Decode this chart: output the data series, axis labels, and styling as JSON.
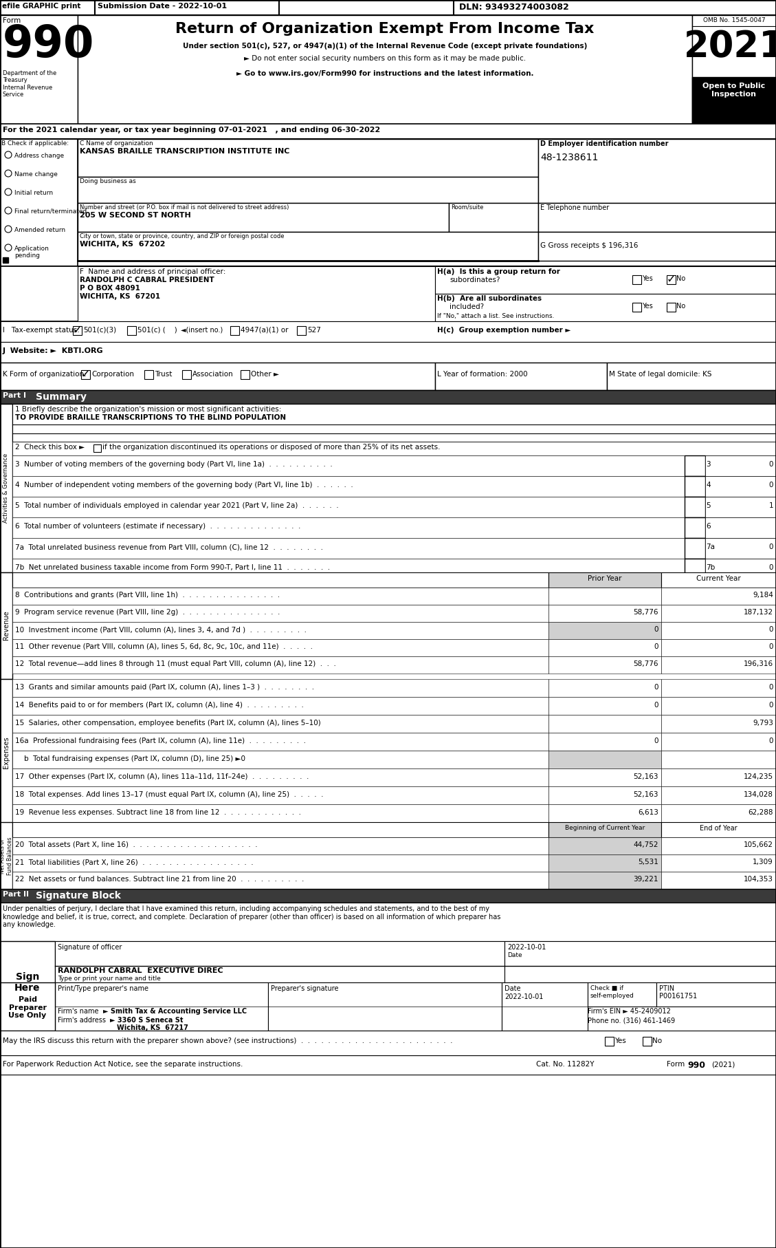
{
  "title_main": "Return of Organization Exempt From Income Tax",
  "subtitle1": "Under section 501(c), 527, or 4947(a)(1) of the Internal Revenue Code (except private foundations)",
  "subtitle2": "► Do not enter social security numbers on this form as it may be made public.",
  "subtitle3": "► Go to www.irs.gov/Form990 for instructions and the latest information.",
  "form_number": "990",
  "year": "2021",
  "omb": "OMB No. 1545-0047",
  "open_public": "Open to Public\nInspection",
  "efile": "efile GRAPHIC print",
  "submission": "Submission Date - 2022-10-01",
  "dln": "DLN: 93493274003082",
  "dept": "Department of the\nTreasury\nInternal Revenue\nService",
  "tax_year": "For the 2021 calendar year, or tax year beginning 07-01-2021   , and ending 06-30-2022",
  "org_name": "KANSAS BRAILLE TRANSCRIPTION INSTITUTE INC",
  "ein": "48-1238611",
  "address_label": "Number and street (or P.O. box if mail is not delivered to street address)",
  "address": "205 W SECOND ST NORTH",
  "city_label": "City or town, state or province, country, and ZIP or foreign postal code",
  "city": "WICHITA, KS  67202",
  "gross_receipts": "G Gross receipts $ 196,316",
  "principal_officer_label": "F  Name and address of principal officer:",
  "principal_officer_name": "RANDOLPH C CABRAL PRESIDENT",
  "principal_officer_po": "P O BOX 48091",
  "principal_officer_city": "WICHITA, KS  67201",
  "website": "J  Website: ►  KBTI.ORG",
  "year_formation": "L Year of formation: 2000",
  "state_domicile": "M State of legal domicile: KS",
  "mission": "TO PROVIDE BRAILLE TRANSCRIPTIONS TO THE BLIND POPULATION",
  "bg_color": "#ffffff",
  "part1_bg": "#404040",
  "gray_col": "#d0d0d0"
}
